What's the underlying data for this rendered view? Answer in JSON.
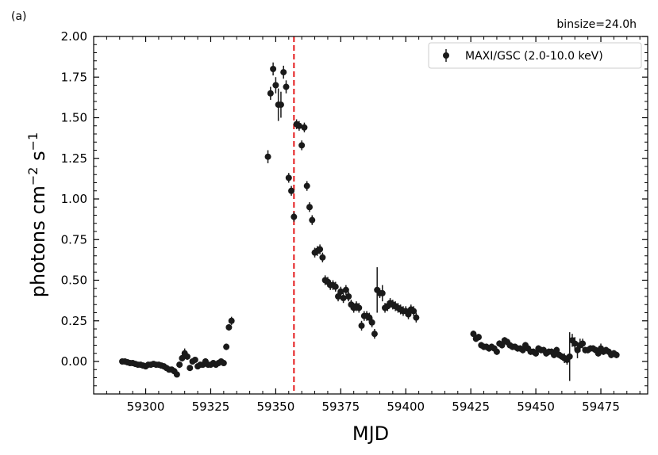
{
  "chart_data": {
    "type": "scatter",
    "panel_label": "(a)",
    "annotation": "binsize=24.0h",
    "xlabel": "MJD",
    "ylabel": "photons cm",
    "ylabel_exp1": "−2",
    "ylabel_mid": " s",
    "ylabel_exp2": "−1",
    "xlim": [
      59280,
      59493
    ],
    "ylim": [
      -0.2,
      2.0
    ],
    "xticks": [
      59300,
      59325,
      59350,
      59375,
      59400,
      59425,
      59450,
      59475
    ],
    "xtick_labels": [
      "59300",
      "59325",
      "59350",
      "59375",
      "59400",
      "59425",
      "59450",
      "59475"
    ],
    "yticks": [
      0.0,
      0.25,
      0.5,
      0.75,
      1.0,
      1.25,
      1.5,
      1.75,
      2.0
    ],
    "ytick_labels": [
      "0.00",
      "0.25",
      "0.50",
      "0.75",
      "1.00",
      "1.25",
      "1.50",
      "1.75",
      "2.00"
    ],
    "legend_position": "top-right",
    "vline": {
      "x": 59357,
      "color": "#e41a1c",
      "style": "dashed"
    },
    "series": [
      {
        "name": "MAXI/GSC (2.0-10.0 keV)",
        "color": "#1a1a1a",
        "points": [
          [
            59291,
            0.0,
            0.01
          ],
          [
            59292,
            0.0,
            0.01
          ],
          [
            59293,
            -0.005,
            0.01
          ],
          [
            59294,
            -0.01,
            0.01
          ],
          [
            59295,
            -0.01,
            0.01
          ],
          [
            59296,
            -0.015,
            0.01
          ],
          [
            59297,
            -0.02,
            0.01
          ],
          [
            59298,
            -0.02,
            0.01
          ],
          [
            59299,
            -0.025,
            0.01
          ],
          [
            59300,
            -0.03,
            0.01
          ],
          [
            59301,
            -0.02,
            0.01
          ],
          [
            59302,
            -0.02,
            0.01
          ],
          [
            59303,
            -0.015,
            0.01
          ],
          [
            59304,
            -0.02,
            0.01
          ],
          [
            59305,
            -0.02,
            0.01
          ],
          [
            59306,
            -0.025,
            0.01
          ],
          [
            59307,
            -0.03,
            0.01
          ],
          [
            59308,
            -0.04,
            0.01
          ],
          [
            59309,
            -0.05,
            0.01
          ],
          [
            59310,
            -0.05,
            0.01
          ],
          [
            59311,
            -0.06,
            0.015
          ],
          [
            59312,
            -0.08,
            0.015
          ],
          [
            59313,
            -0.02,
            0.02
          ],
          [
            59314,
            0.02,
            0.02
          ],
          [
            59315,
            0.05,
            0.03
          ],
          [
            59316,
            0.03,
            0.02
          ],
          [
            59317,
            -0.04,
            0.015
          ],
          [
            59318,
            0.0,
            0.015
          ],
          [
            59319,
            0.01,
            0.015
          ],
          [
            59320,
            -0.03,
            0.015
          ],
          [
            59321,
            -0.02,
            0.015
          ],
          [
            59322,
            -0.02,
            0.015
          ],
          [
            59323,
            0.0,
            0.02
          ],
          [
            59324,
            -0.02,
            0.015
          ],
          [
            59325,
            -0.02,
            0.015
          ],
          [
            59326,
            -0.01,
            0.015
          ],
          [
            59327,
            -0.02,
            0.015
          ],
          [
            59328,
            -0.01,
            0.015
          ],
          [
            59329,
            0.0,
            0.015
          ],
          [
            59330,
            -0.01,
            0.015
          ],
          [
            59331,
            0.09,
            0.02
          ],
          [
            59332,
            0.21,
            0.02
          ],
          [
            59333,
            0.25,
            0.025
          ],
          [
            59347,
            1.26,
            0.04
          ],
          [
            59348,
            1.65,
            0.04
          ],
          [
            59349,
            1.8,
            0.04
          ],
          [
            59350,
            1.7,
            0.05
          ],
          [
            59351,
            1.58,
            0.1
          ],
          [
            59352,
            1.58,
            0.08
          ],
          [
            59353,
            1.78,
            0.04
          ],
          [
            59354,
            1.69,
            0.04
          ],
          [
            59355,
            1.13,
            0.03
          ],
          [
            59356,
            1.05,
            0.03
          ],
          [
            59357,
            0.89,
            0.03
          ],
          [
            59358,
            1.46,
            0.03
          ],
          [
            59359,
            1.45,
            0.03
          ],
          [
            59360,
            1.33,
            0.03
          ],
          [
            59361,
            1.44,
            0.03
          ],
          [
            59362,
            1.08,
            0.03
          ],
          [
            59363,
            0.95,
            0.03
          ],
          [
            59364,
            0.87,
            0.03
          ],
          [
            59365,
            0.67,
            0.03
          ],
          [
            59366,
            0.68,
            0.03
          ],
          [
            59367,
            0.69,
            0.03
          ],
          [
            59368,
            0.64,
            0.03
          ],
          [
            59369,
            0.5,
            0.03
          ],
          [
            59370,
            0.49,
            0.03
          ],
          [
            59371,
            0.47,
            0.03
          ],
          [
            59372,
            0.47,
            0.03
          ],
          [
            59373,
            0.46,
            0.03
          ],
          [
            59374,
            0.4,
            0.03
          ],
          [
            59375,
            0.43,
            0.03
          ],
          [
            59376,
            0.39,
            0.03
          ],
          [
            59377,
            0.44,
            0.03
          ],
          [
            59378,
            0.4,
            0.03
          ],
          [
            59379,
            0.35,
            0.03
          ],
          [
            59380,
            0.33,
            0.03
          ],
          [
            59381,
            0.34,
            0.03
          ],
          [
            59382,
            0.33,
            0.03
          ],
          [
            59383,
            0.22,
            0.03
          ],
          [
            59384,
            0.28,
            0.03
          ],
          [
            59385,
            0.28,
            0.03
          ],
          [
            59386,
            0.27,
            0.03
          ],
          [
            59387,
            0.24,
            0.03
          ],
          [
            59388,
            0.17,
            0.03
          ],
          [
            59389,
            0.44,
            0.14
          ],
          [
            59390,
            0.42,
            0.03
          ],
          [
            59391,
            0.42,
            0.05
          ],
          [
            59392,
            0.33,
            0.03
          ],
          [
            59393,
            0.34,
            0.03
          ],
          [
            59394,
            0.36,
            0.03
          ],
          [
            59395,
            0.35,
            0.03
          ],
          [
            59396,
            0.34,
            0.03
          ],
          [
            59397,
            0.33,
            0.03
          ],
          [
            59398,
            0.32,
            0.03
          ],
          [
            59399,
            0.31,
            0.03
          ],
          [
            59400,
            0.31,
            0.03
          ],
          [
            59401,
            0.29,
            0.03
          ],
          [
            59402,
            0.32,
            0.03
          ],
          [
            59403,
            0.31,
            0.03
          ],
          [
            59404,
            0.27,
            0.03
          ],
          [
            59426,
            0.17,
            0.02
          ],
          [
            59427,
            0.14,
            0.02
          ],
          [
            59428,
            0.15,
            0.02
          ],
          [
            59429,
            0.1,
            0.02
          ],
          [
            59430,
            0.09,
            0.02
          ],
          [
            59431,
            0.09,
            0.02
          ],
          [
            59432,
            0.08,
            0.02
          ],
          [
            59433,
            0.09,
            0.02
          ],
          [
            59434,
            0.08,
            0.02
          ],
          [
            59435,
            0.06,
            0.02
          ],
          [
            59436,
            0.11,
            0.02
          ],
          [
            59437,
            0.1,
            0.02
          ],
          [
            59438,
            0.13,
            0.02
          ],
          [
            59439,
            0.12,
            0.02
          ],
          [
            59440,
            0.1,
            0.02
          ],
          [
            59441,
            0.09,
            0.02
          ],
          [
            59442,
            0.09,
            0.02
          ],
          [
            59443,
            0.08,
            0.02
          ],
          [
            59444,
            0.08,
            0.02
          ],
          [
            59445,
            0.07,
            0.02
          ],
          [
            59446,
            0.1,
            0.02
          ],
          [
            59447,
            0.08,
            0.02
          ],
          [
            59448,
            0.06,
            0.02
          ],
          [
            59449,
            0.06,
            0.02
          ],
          [
            59450,
            0.05,
            0.02
          ],
          [
            59451,
            0.08,
            0.02
          ],
          [
            59452,
            0.07,
            0.02
          ],
          [
            59453,
            0.07,
            0.02
          ],
          [
            59454,
            0.05,
            0.02
          ],
          [
            59455,
            0.06,
            0.02
          ],
          [
            59456,
            0.06,
            0.02
          ],
          [
            59457,
            0.04,
            0.02
          ],
          [
            59458,
            0.07,
            0.02
          ],
          [
            59459,
            0.04,
            0.02
          ],
          [
            59460,
            0.03,
            0.02
          ],
          [
            59461,
            0.02,
            0.03
          ],
          [
            59462,
            0.01,
            0.03
          ],
          [
            59463,
            0.03,
            0.15
          ],
          [
            59464,
            0.13,
            0.04
          ],
          [
            59465,
            0.11,
            0.04
          ],
          [
            59466,
            0.07,
            0.05
          ],
          [
            59467,
            0.1,
            0.04
          ],
          [
            59468,
            0.11,
            0.03
          ],
          [
            59469,
            0.07,
            0.02
          ],
          [
            59470,
            0.07,
            0.02
          ],
          [
            59471,
            0.08,
            0.02
          ],
          [
            59472,
            0.08,
            0.02
          ],
          [
            59473,
            0.07,
            0.02
          ],
          [
            59474,
            0.05,
            0.02
          ],
          [
            59475,
            0.08,
            0.03
          ],
          [
            59476,
            0.06,
            0.02
          ],
          [
            59477,
            0.07,
            0.02
          ],
          [
            59478,
            0.06,
            0.02
          ],
          [
            59479,
            0.04,
            0.02
          ],
          [
            59480,
            0.05,
            0.02
          ],
          [
            59481,
            0.04,
            0.02
          ]
        ]
      }
    ]
  }
}
